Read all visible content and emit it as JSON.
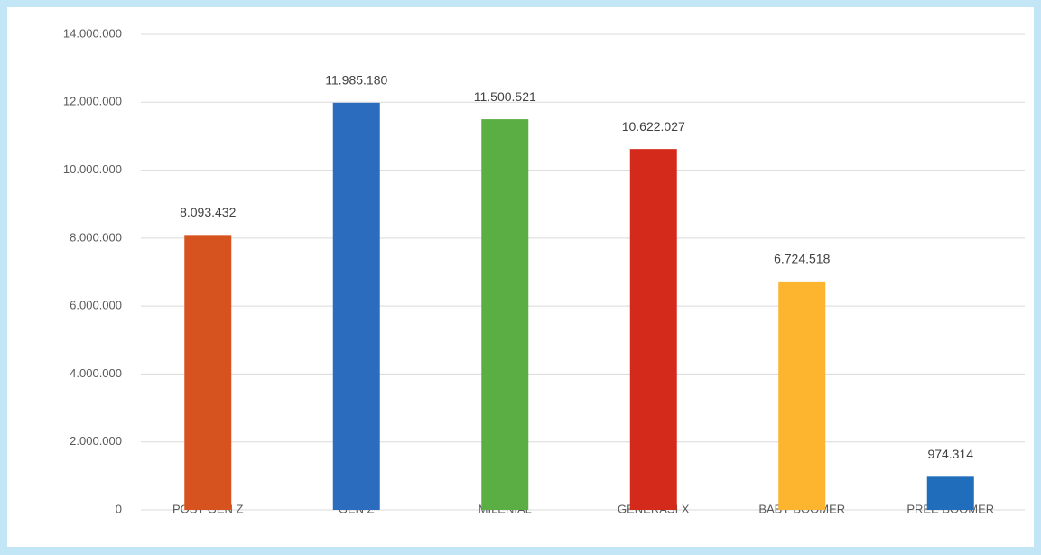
{
  "chart_data": {
    "type": "bar",
    "categories": [
      "POST GEN Z",
      "GEN Z",
      "MILENIAL",
      "GENERASI X",
      "BABY BOOMER",
      "PREE BOOMER"
    ],
    "values": [
      8093432,
      11985180,
      11500521,
      10622027,
      6724518,
      974314
    ],
    "value_labels": [
      "8.093.432",
      "11.985.180",
      "11.500.521",
      "10.622.027",
      "6.724.518",
      "974.314"
    ],
    "colors": [
      "#d6531f",
      "#2b6cbf",
      "#5bae44",
      "#d32a1c",
      "#fdb42f",
      "#1f6dbb"
    ],
    "ylim": [
      0,
      14000000
    ],
    "yticks": [
      0,
      {
        "value": 2000000,
        "label": "2.000.000"
      },
      {
        "value": 4000000,
        "label": "4.000.000"
      },
      {
        "value": 6000000,
        "label": "6.000.000"
      },
      {
        "value": 8000000,
        "label": "8.000.000"
      },
      {
        "value": 10000000,
        "label": "10.000.000"
      },
      {
        "value": 12000000,
        "label": "12.000.000"
      },
      {
        "value": 14000000,
        "label": "14.000.000"
      }
    ],
    "grid": true
  }
}
